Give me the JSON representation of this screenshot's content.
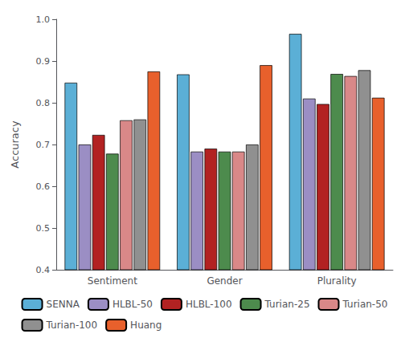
{
  "chart_data": {
    "type": "bar",
    "ylabel": "Accuracy",
    "categories": [
      "Sentiment",
      "Gender",
      "Plurality"
    ],
    "series": [
      {
        "name": "SENNA",
        "color": "#5bafd6",
        "values": [
          0.848,
          0.868,
          0.965
        ]
      },
      {
        "name": "HLBL-50",
        "color": "#9b8ec4",
        "values": [
          0.7,
          0.683,
          0.81
        ]
      },
      {
        "name": "HLBL-100",
        "color": "#b22222",
        "values": [
          0.723,
          0.69,
          0.797
        ]
      },
      {
        "name": "Turian-25",
        "color": "#4d8b4d",
        "values": [
          0.678,
          0.683,
          0.869
        ]
      },
      {
        "name": "Turian-50",
        "color": "#d98888",
        "values": [
          0.758,
          0.683,
          0.864
        ]
      },
      {
        "name": "Turian-100",
        "color": "#909090",
        "values": [
          0.76,
          0.7,
          0.878
        ]
      },
      {
        "name": "Huang",
        "color": "#e8602c",
        "values": [
          0.875,
          0.89,
          0.812
        ]
      }
    ],
    "ylim": [
      0.4,
      1.0
    ],
    "yticks": [
      0.4,
      0.5,
      0.6,
      0.7,
      0.8,
      0.9,
      {
        "value": 1.0,
        "label": "1.0"
      }
    ],
    "legend": "bottom",
    "grid": false
  }
}
